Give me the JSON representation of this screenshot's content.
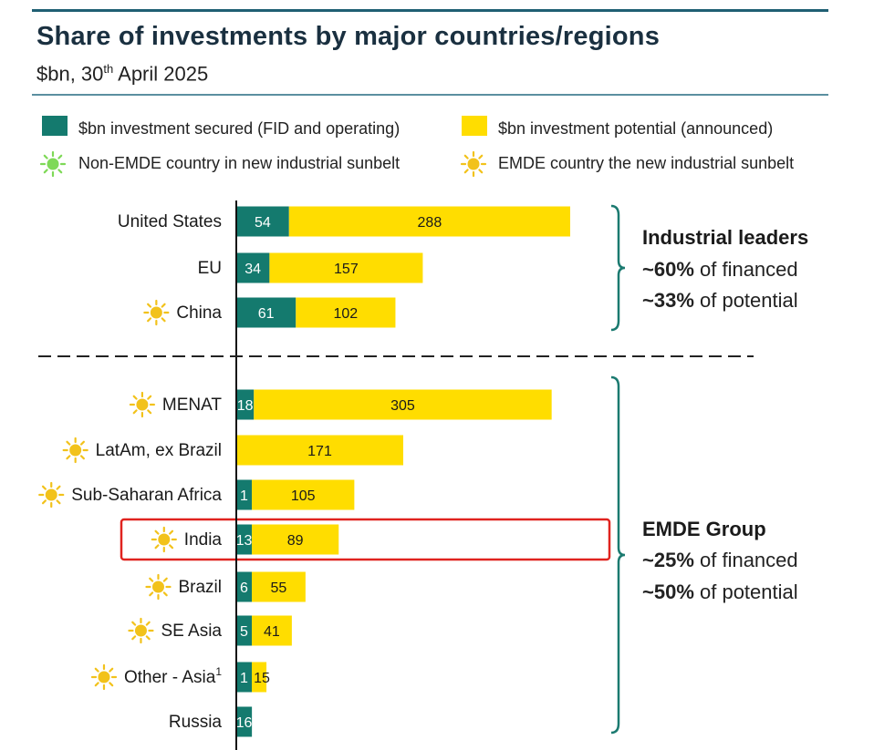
{
  "header": {
    "title": "Share of investments by major countries/regions",
    "subtitle_main": "$bn, 30",
    "subtitle_sup": "th",
    "subtitle_rest": " April 2025"
  },
  "legend": {
    "secured": "$bn investment secured (FID and operating)",
    "potential": "$bn investment potential (announced)",
    "non_emde": "Non-EMDE country in new industrial sunbelt",
    "emde": "EMDE country the new industrial sunbelt"
  },
  "colors": {
    "secured": "#147a6e",
    "potential": "#ffdd00",
    "emde_sun": "#f2c21b",
    "non_emde_sun": "#7ed957",
    "bracket": "#1b7a70",
    "highlight": "#e0231f",
    "accent_line": "#1f5f73"
  },
  "chart_data": {
    "type": "bar",
    "orientation": "horizontal",
    "stacked": true,
    "categories": [
      "United States",
      "EU",
      "China",
      "MENAT",
      "LatAm, ex Brazil",
      "Sub-Saharan Africa",
      "India",
      "Brazil",
      "SE Asia",
      "Other - Asia",
      "Russia"
    ],
    "category_superscripts": [
      "",
      "",
      "",
      "",
      "",
      "",
      "",
      "",
      "",
      "1",
      ""
    ],
    "emde_marker": [
      false,
      false,
      true,
      true,
      true,
      true,
      true,
      true,
      true,
      true,
      false
    ],
    "series": [
      {
        "name": "$bn investment secured (FID and operating)",
        "values": [
          54,
          34,
          61,
          18,
          null,
          1,
          13,
          6,
          5,
          1,
          16
        ]
      },
      {
        "name": "$bn investment potential (announced)",
        "values": [
          288,
          157,
          102,
          305,
          171,
          105,
          89,
          55,
          41,
          15,
          null
        ]
      }
    ],
    "highlighted_category": "India",
    "groups": [
      {
        "title": "Industrial leaders",
        "lines": [
          [
            "~60%",
            " of financed"
          ],
          [
            "~33%",
            " of potential"
          ]
        ]
      },
      {
        "title": "EMDE Group",
        "lines": [
          [
            "~25%",
            " of financed"
          ],
          [
            "~50%",
            " of potential"
          ]
        ]
      }
    ]
  }
}
